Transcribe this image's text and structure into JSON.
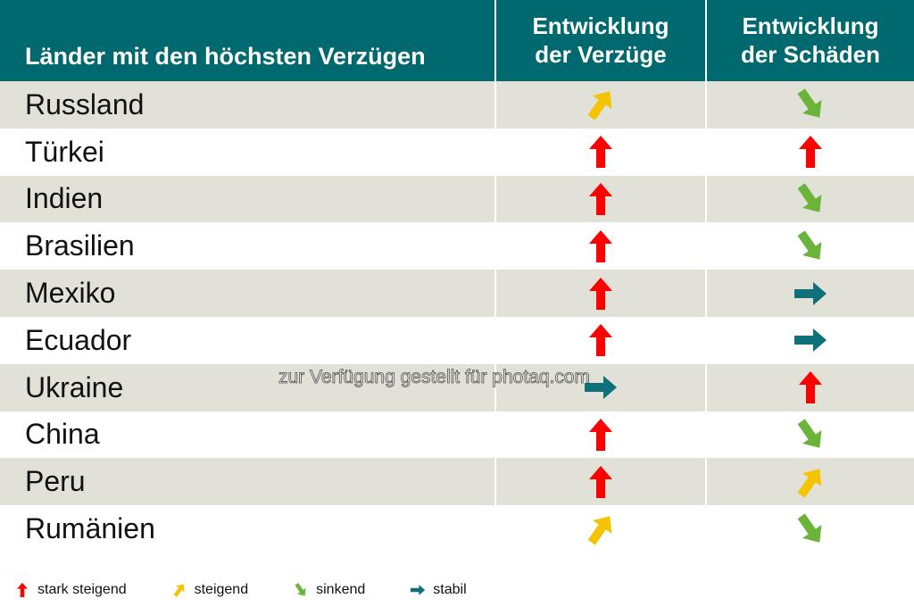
{
  "header": {
    "country_label": "Länder mit den höchsten Verzügen",
    "col_a_line1": "Entwicklung",
    "col_a_line2": "der Verzüge",
    "col_b_line1": "Entwicklung",
    "col_b_line2": "der Schäden"
  },
  "trend_colors": {
    "stark-steigend": "#ff0000",
    "steigend": "#f5c400",
    "sinkend": "#6ab43a",
    "stabil": "#0e7079"
  },
  "rows": [
    {
      "country": "Russland",
      "verzuege": "steigend",
      "schaeden": "sinkend"
    },
    {
      "country": "Türkei",
      "verzuege": "stark-steigend",
      "schaeden": "stark-steigend"
    },
    {
      "country": "Indien",
      "verzuege": "stark-steigend",
      "schaeden": "sinkend"
    },
    {
      "country": "Brasilien",
      "verzuege": "stark-steigend",
      "schaeden": "sinkend"
    },
    {
      "country": "Mexiko",
      "verzuege": "stark-steigend",
      "schaeden": "stabil"
    },
    {
      "country": "Ecuador",
      "verzuege": "stark-steigend",
      "schaeden": "stabil"
    },
    {
      "country": "Ukraine",
      "verzuege": "stabil",
      "schaeden": "stark-steigend"
    },
    {
      "country": "China",
      "verzuege": "stark-steigend",
      "schaeden": "sinkend"
    },
    {
      "country": "Peru",
      "verzuege": "stark-steigend",
      "schaeden": "steigend"
    },
    {
      "country": "Rumänien",
      "verzuege": "steigend",
      "schaeden": "sinkend"
    }
  ],
  "legend": [
    {
      "trend": "stark-steigend",
      "label": "stark steigend"
    },
    {
      "trend": "steigend",
      "label": "steigend"
    },
    {
      "trend": "sinkend",
      "label": "sinkend"
    },
    {
      "trend": "stabil",
      "label": "stabil"
    }
  ],
  "watermark": "zur Verfügung gestellt für photaq.com"
}
